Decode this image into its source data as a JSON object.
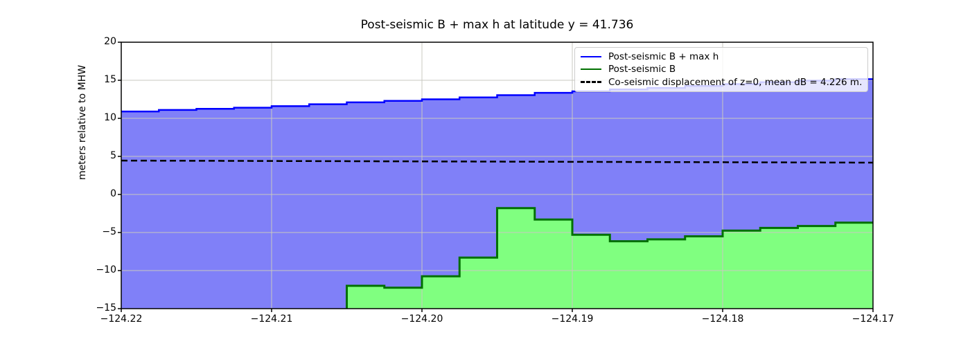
{
  "figure": {
    "title": "Post-seismic B + max h at latitude y = 41.736"
  },
  "chart_data": {
    "type": "area",
    "title": "Post-seismic B + max h at latitude y = 41.736",
    "xlabel": "",
    "ylabel": "meters relative to MHW",
    "xlim": [
      -124.22,
      -124.17
    ],
    "ylim": [
      -15,
      20
    ],
    "grid": true,
    "grid_color": "#c9c9c0",
    "x_ticks": [
      {
        "value": -124.22,
        "label": "−124.22"
      },
      {
        "value": -124.21,
        "label": "−124.21"
      },
      {
        "value": -124.2,
        "label": "−124.20"
      },
      {
        "value": -124.19,
        "label": "−124.19"
      },
      {
        "value": -124.18,
        "label": "−124.18"
      },
      {
        "value": -124.17,
        "label": "−124.17"
      }
    ],
    "y_ticks": [
      {
        "value": 20,
        "label": "20"
      },
      {
        "value": 15,
        "label": "15"
      },
      {
        "value": 10,
        "label": "10"
      },
      {
        "value": 5,
        "label": "5"
      },
      {
        "value": 0,
        "label": "0"
      },
      {
        "value": -5,
        "label": "−5"
      },
      {
        "value": -10,
        "label": "−10"
      },
      {
        "value": -15,
        "label": "−15"
      }
    ],
    "legend": {
      "position": "upper right",
      "items": [
        {
          "label": "Post-seismic B + max h",
          "color": "#0000ff",
          "style": "solid"
        },
        {
          "label": "Post-seismic B",
          "color": "#007000",
          "style": "solid"
        },
        {
          "label": "Co-seismic displacement of z=0, mean dB = 4.226 m.",
          "color": "#000000",
          "style": "dashed"
        }
      ]
    },
    "series": [
      {
        "name": "Post-seismic B + max h",
        "type": "step-area",
        "line_color": "#0000ff",
        "fill_color": "#8080f8",
        "x_edges": [
          -124.22,
          -124.2175,
          -124.215,
          -124.2125,
          -124.21,
          -124.2075,
          -124.205,
          -124.2025,
          -124.2,
          -124.1975,
          -124.195,
          -124.1925,
          -124.19,
          -124.1875,
          -124.185,
          -124.1825,
          -124.18,
          -124.1775,
          -124.175,
          -124.1725,
          -124.17
        ],
        "values": [
          10.9,
          11.1,
          11.25,
          11.4,
          11.6,
          11.85,
          12.1,
          12.3,
          12.5,
          12.75,
          13.05,
          13.35,
          13.55,
          13.8,
          14.0,
          14.25,
          14.5,
          14.75,
          14.95,
          15.15
        ]
      },
      {
        "name": "Post-seismic B",
        "type": "step-area",
        "line_color": "#007000",
        "fill_color": "#80ff80",
        "x_edges": [
          -124.205,
          -124.2025,
          -124.2,
          -124.1975,
          -124.195,
          -124.1925,
          -124.19,
          -124.1875,
          -124.185,
          -124.1825,
          -124.18,
          -124.1775,
          -124.175,
          -124.1725,
          -124.17
        ],
        "values": [
          -12.0,
          -12.25,
          -10.75,
          -8.3,
          -1.8,
          -3.3,
          -5.3,
          -6.15,
          -5.9,
          -5.5,
          -4.75,
          -4.4,
          -4.15,
          -3.7
        ]
      },
      {
        "name": "Co-seismic displacement of z=0, mean dB = 4.226 m.",
        "type": "dashed-line",
        "line_color": "#000000",
        "mean_dB": 4.226,
        "x": [
          -124.22,
          -124.17
        ],
        "y": [
          4.45,
          4.18
        ]
      }
    ]
  }
}
